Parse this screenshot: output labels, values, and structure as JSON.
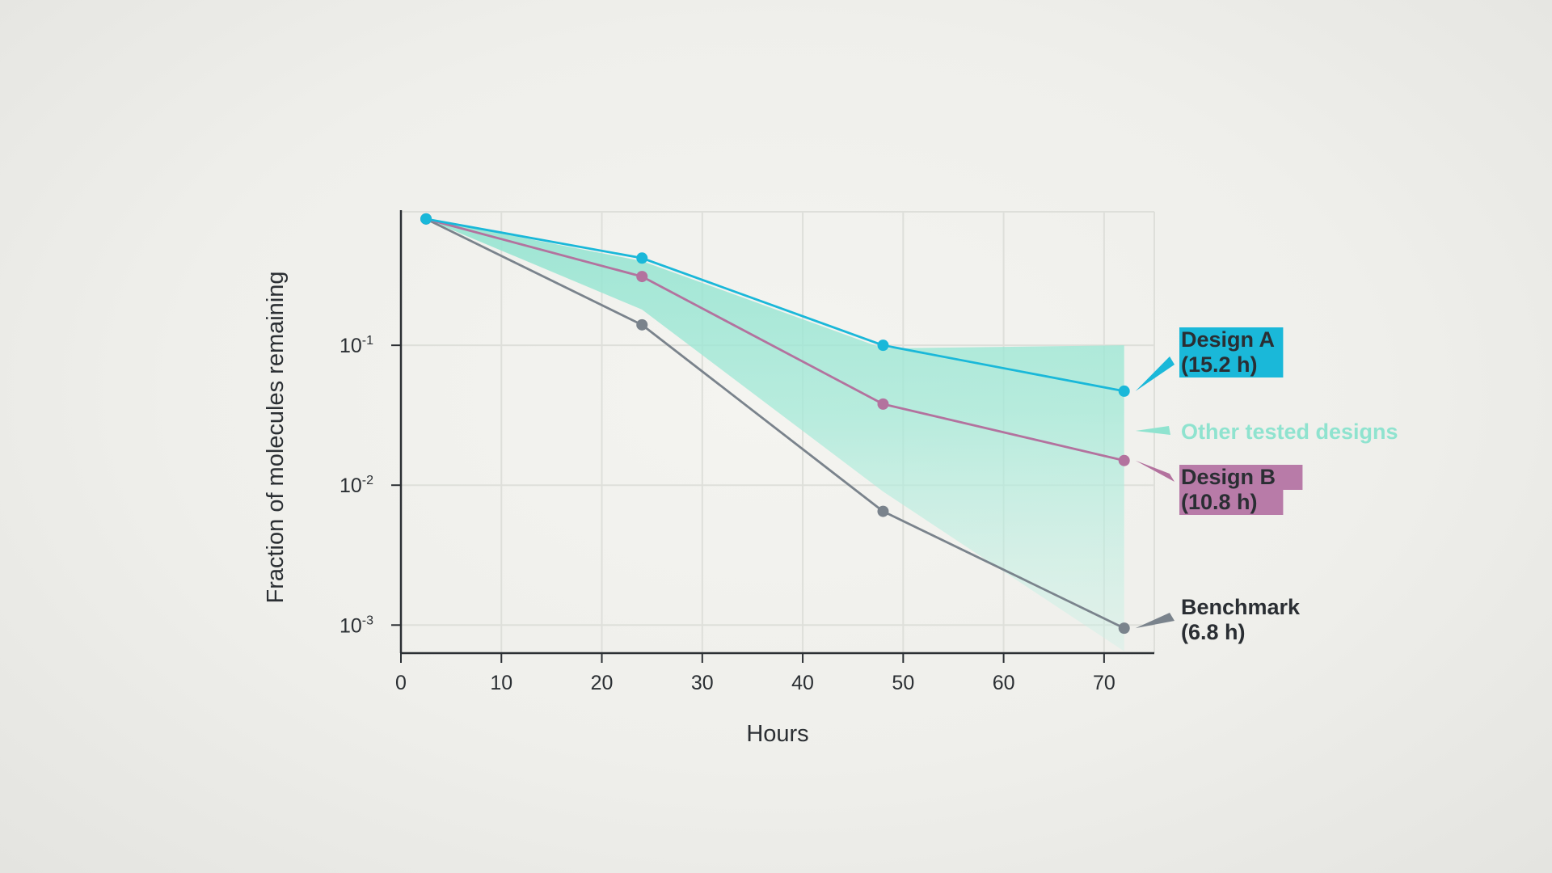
{
  "chart_data": {
    "type": "line",
    "xlabel": "Hours",
    "ylabel": "Fraction of molecules remaining",
    "xlim": [
      0,
      75
    ],
    "ylim": [
      0.00063,
      0.9
    ],
    "y_scale": "log",
    "grid": true,
    "x_ticks": [
      0,
      10,
      20,
      30,
      40,
      50,
      60,
      70
    ],
    "y_ticks": [
      {
        "value": 0.1,
        "base": "10",
        "exp": "-1"
      },
      {
        "value": 0.01,
        "base": "10",
        "exp": "-2"
      },
      {
        "value": 0.001,
        "base": "10",
        "exp": "-3"
      }
    ],
    "series": [
      {
        "name": "Design A",
        "label": [
          "Design A",
          "(15.2 h)"
        ],
        "color": "#1ab8d9",
        "label_bg": "#1ab8d9",
        "x": [
          2.5,
          24,
          48,
          72
        ],
        "y": [
          0.8,
          0.42,
          0.1,
          0.047
        ]
      },
      {
        "name": "Design B",
        "label": [
          "Design B",
          "(10.8 h)"
        ],
        "color": "#b3729e",
        "label_bg": "#b87ba8",
        "x": [
          2.5,
          24,
          48,
          72
        ],
        "y": [
          0.8,
          0.31,
          0.038,
          0.015
        ]
      },
      {
        "name": "Benchmark",
        "label": [
          "Benchmark",
          "(6.8 h)"
        ],
        "color": "#7a838c",
        "label_bg": "",
        "x": [
          2.5,
          24,
          48,
          72
        ],
        "y": [
          0.8,
          0.14,
          0.0065,
          0.00095
        ]
      }
    ],
    "band": {
      "name": "Other tested designs",
      "color": "#8fe3cf",
      "x": [
        2.5,
        24,
        48,
        72
      ],
      "upper": [
        0.8,
        0.4,
        0.095,
        0.1
      ],
      "lower": [
        0.8,
        0.18,
        0.009,
        0.00065
      ]
    }
  }
}
